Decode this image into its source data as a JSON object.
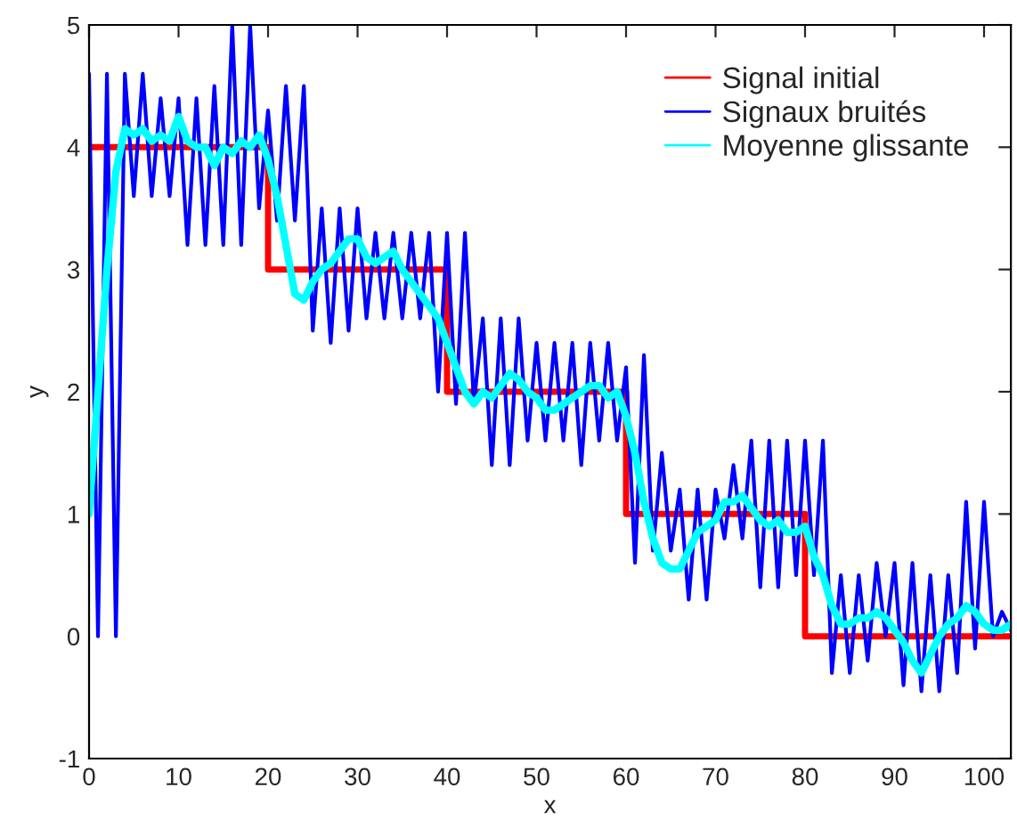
{
  "chart_data": {
    "type": "line",
    "xlabel": "x",
    "ylabel": "y",
    "xlim": [
      0,
      103
    ],
    "xticks": [
      0,
      10,
      20,
      30,
      40,
      50,
      60,
      70,
      80,
      90,
      100
    ],
    "ylim": [
      -1,
      5
    ],
    "yticks": [
      -1,
      0,
      1,
      2,
      3,
      4,
      5
    ],
    "grid": false,
    "legend": "top right",
    "series": [
      {
        "name": "Signal initial",
        "type": "step",
        "color": "#ff0000",
        "x": [
          0,
          20,
          40,
          60,
          80,
          103
        ],
        "values": [
          4,
          3,
          2,
          1,
          0,
          0
        ]
      },
      {
        "name": "Signaux bruités",
        "type": "line",
        "color": "#0000ff",
        "x": [
          0,
          1,
          2,
          3,
          4,
          5,
          6,
          7,
          8,
          9,
          10,
          11,
          12,
          13,
          14,
          15,
          16,
          17,
          18,
          19,
          20,
          21,
          22,
          23,
          24,
          25,
          26,
          27,
          28,
          29,
          30,
          31,
          32,
          33,
          34,
          35,
          36,
          37,
          38,
          39,
          40,
          41,
          42,
          43,
          44,
          45,
          46,
          47,
          48,
          49,
          50,
          51,
          52,
          53,
          54,
          55,
          56,
          57,
          58,
          59,
          60,
          61,
          62,
          63,
          64,
          65,
          66,
          67,
          68,
          69,
          70,
          71,
          72,
          73,
          74,
          75,
          76,
          77,
          78,
          79,
          80,
          81,
          82,
          83,
          84,
          85,
          86,
          87,
          88,
          89,
          90,
          91,
          92,
          93,
          94,
          95,
          96,
          97,
          98,
          99,
          100,
          101,
          102,
          103
        ],
        "values": [
          4.6,
          0,
          4.6,
          0,
          4.6,
          3.6,
          4.6,
          3.6,
          4.4,
          3.6,
          4.4,
          3.2,
          4.4,
          3.2,
          4.5,
          3.2,
          5,
          3.2,
          5,
          3.5,
          4.3,
          3.4,
          4.5,
          3.4,
          4.5,
          2.5,
          3.5,
          2.4,
          3.5,
          2.5,
          3.5,
          2.6,
          3.3,
          2.6,
          3.3,
          2.6,
          3.3,
          2.6,
          3.3,
          2.0,
          3.3,
          1.9,
          3.3,
          1.9,
          2.6,
          1.4,
          2.6,
          1.4,
          2.6,
          1.6,
          2.4,
          1.6,
          2.4,
          1.6,
          2.4,
          1.4,
          2.4,
          1.6,
          2.4,
          1.6,
          2.2,
          0.6,
          2.3,
          0.7,
          1.5,
          0.7,
          1.2,
          0.3,
          1.2,
          0.3,
          1.2,
          0.8,
          1.4,
          0.8,
          1.6,
          0.4,
          1.6,
          0.4,
          1.6,
          0.5,
          1.6,
          0.5,
          1.6,
          -0.3,
          0.5,
          -0.3,
          0.5,
          -0.2,
          0.6,
          0,
          0.6,
          -0.4,
          0.6,
          -0.45,
          0.5,
          -0.45,
          0.5,
          -0.3,
          1.1,
          -0.1,
          1.1,
          0,
          0.2,
          0.05
        ]
      },
      {
        "name": "Moyenne glissante",
        "color": "#00ffff",
        "x": [
          0,
          1,
          2,
          3,
          4,
          5,
          6,
          7,
          8,
          9,
          10,
          11,
          12,
          13,
          14,
          15,
          16,
          17,
          18,
          19,
          20,
          21,
          22,
          23,
          24,
          25,
          26,
          27,
          28,
          29,
          30,
          31,
          32,
          33,
          34,
          35,
          36,
          37,
          38,
          39,
          40,
          41,
          42,
          43,
          44,
          45,
          46,
          47,
          48,
          49,
          50,
          51,
          52,
          53,
          54,
          55,
          56,
          57,
          58,
          59,
          60,
          61,
          62,
          63,
          64,
          65,
          66,
          67,
          68,
          69,
          70,
          71,
          72,
          73,
          74,
          75,
          76,
          77,
          78,
          79,
          80,
          81,
          82,
          83,
          84,
          85,
          86,
          87,
          88,
          89,
          90,
          91,
          92,
          93,
          94,
          95,
          96,
          97,
          98,
          99,
          100,
          101,
          102,
          103
        ],
        "values": [
          1.0,
          2.0,
          3.0,
          3.8,
          4.15,
          4.1,
          4.15,
          4.05,
          4.1,
          4.05,
          4.25,
          4.05,
          4.0,
          4.0,
          3.85,
          4.0,
          3.95,
          4.05,
          4.0,
          4.1,
          3.9,
          3.6,
          3.2,
          2.8,
          2.75,
          2.9,
          3.0,
          3.05,
          3.15,
          3.25,
          3.25,
          3.1,
          3.05,
          3.1,
          3.15,
          3.0,
          2.9,
          2.8,
          2.7,
          2.6,
          2.4,
          2.2,
          2.0,
          1.9,
          2.0,
          1.95,
          2.05,
          2.15,
          2.1,
          2.0,
          1.95,
          1.85,
          1.85,
          1.9,
          1.95,
          2.0,
          2.05,
          2.05,
          1.95,
          2.0,
          1.8,
          1.5,
          1.1,
          0.8,
          0.6,
          0.55,
          0.55,
          0.7,
          0.85,
          0.9,
          0.95,
          1.1,
          1.1,
          1.15,
          1.05,
          0.95,
          0.9,
          0.95,
          0.85,
          0.85,
          0.9,
          0.65,
          0.5,
          0.25,
          0.1,
          0.1,
          0.15,
          0.15,
          0.2,
          0.15,
          0.05,
          -0.05,
          -0.2,
          -0.3,
          -0.15,
          0.0,
          0.1,
          0.15,
          0.25,
          0.2,
          0.1,
          0.05,
          0.05,
          0.1
        ]
      }
    ]
  }
}
